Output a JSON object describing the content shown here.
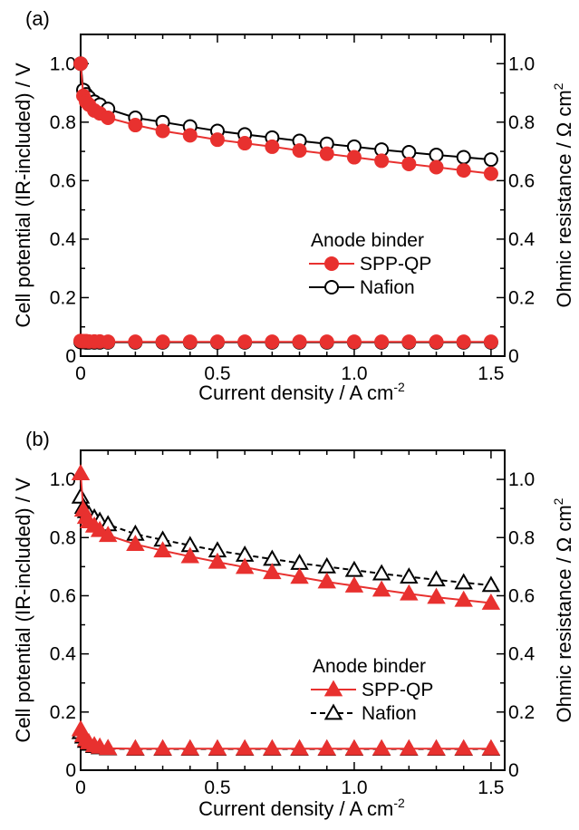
{
  "figure": {
    "panels": [
      "(a)",
      "(b)"
    ]
  },
  "chart_data": [
    {
      "type": "line",
      "panel": "(a)",
      "xlabel": "Current density / A cm",
      "xlabel_sup": "-2",
      "ylabel": "Cell potential (IR-included) / V",
      "y2label": "Ohmic resistance / Ω cm",
      "y2label_sup": "2",
      "xlim": [
        0,
        1.55
      ],
      "ylim": [
        0,
        1.1
      ],
      "y2lim": [
        0,
        1.1
      ],
      "xticks": [
        0,
        0.5,
        1.0,
        1.5
      ],
      "xtick_labels": [
        "0",
        "0.5",
        "1.0",
        "1.5"
      ],
      "yticks": [
        0,
        0.2,
        0.4,
        0.6,
        0.8,
        1.0
      ],
      "ytick_labels": [
        "0",
        "0.2",
        "0.4",
        "0.6",
        "0.8",
        "1.0"
      ],
      "y2tick_labels": [
        "0",
        "0.2",
        "0.4",
        "0.6",
        "0.8",
        "1.0"
      ],
      "legend": {
        "title": "Anode binder",
        "position": "center-right"
      },
      "x": [
        0,
        0.01,
        0.02,
        0.03,
        0.05,
        0.07,
        0.1,
        0.2,
        0.3,
        0.4,
        0.5,
        0.6,
        0.7,
        0.8,
        0.9,
        1.0,
        1.1,
        1.2,
        1.3,
        1.4,
        1.5
      ],
      "series": [
        {
          "name": "SPP-QP",
          "axis": "left",
          "marker": "filled-circle",
          "line": "solid",
          "color": "#e8312f",
          "values": [
            1.0,
            0.89,
            0.87,
            0.86,
            0.84,
            0.83,
            0.815,
            0.79,
            0.77,
            0.755,
            0.74,
            0.728,
            0.716,
            0.703,
            0.692,
            0.68,
            0.668,
            0.657,
            0.646,
            0.635,
            0.624
          ]
        },
        {
          "name": "Nafion",
          "axis": "left",
          "marker": "open-circle",
          "line": "solid",
          "color": "#000000",
          "values": [
            1.0,
            0.91,
            0.895,
            0.885,
            0.87,
            0.86,
            0.845,
            0.815,
            0.8,
            0.785,
            0.77,
            0.758,
            0.747,
            0.736,
            0.726,
            0.716,
            0.706,
            0.697,
            0.688,
            0.68,
            0.672
          ]
        },
        {
          "name": "SPP-QP resistance",
          "axis": "right",
          "marker": "filled-circle",
          "line": "solid",
          "color": "#e8312f",
          "legend": false,
          "values": [
            0.052,
            0.051,
            0.051,
            0.05,
            0.05,
            0.05,
            0.049,
            0.049,
            0.049,
            0.049,
            0.049,
            0.049,
            0.049,
            0.049,
            0.049,
            0.049,
            0.049,
            0.049,
            0.049,
            0.049,
            0.049
          ]
        },
        {
          "name": "Nafion resistance",
          "axis": "right",
          "marker": "open-circle",
          "line": "solid",
          "color": "#000000",
          "legend": false,
          "values": [
            0.048,
            0.048,
            0.047,
            0.047,
            0.047,
            0.047,
            0.047,
            0.047,
            0.047,
            0.047,
            0.047,
            0.047,
            0.047,
            0.047,
            0.047,
            0.047,
            0.047,
            0.047,
            0.047,
            0.047,
            0.047
          ]
        }
      ]
    },
    {
      "type": "line",
      "panel": "(b)",
      "xlabel": "Current density / A cm",
      "xlabel_sup": "-2",
      "ylabel": "Cell potential (IR-included) / V",
      "y2label": "Ohmic resistance / Ω cm",
      "y2label_sup": "2",
      "xlim": [
        0,
        1.55
      ],
      "ylim": [
        0,
        1.1
      ],
      "y2lim": [
        0,
        1.1
      ],
      "xticks": [
        0,
        0.5,
        1.0,
        1.5
      ],
      "xtick_labels": [
        "0",
        "0.5",
        "1.0",
        "1.5"
      ],
      "yticks": [
        0,
        0.2,
        0.4,
        0.6,
        0.8,
        1.0
      ],
      "ytick_labels": [
        "0",
        "0.2",
        "0.4",
        "0.6",
        "0.8",
        "1.0"
      ],
      "y2tick_labels": [
        "0",
        "0.2",
        "0.4",
        "0.6",
        "0.8",
        "1.0"
      ],
      "legend": {
        "title": "Anode binder",
        "position": "bottom-right"
      },
      "x": [
        0,
        0.01,
        0.02,
        0.03,
        0.05,
        0.07,
        0.1,
        0.2,
        0.3,
        0.4,
        0.5,
        0.6,
        0.7,
        0.8,
        0.9,
        1.0,
        1.1,
        1.2,
        1.3,
        1.4,
        1.5
      ],
      "series": [
        {
          "name": "SPP-QP",
          "axis": "left",
          "marker": "filled-triangle",
          "line": "solid",
          "color": "#e8312f",
          "values": [
            1.02,
            0.895,
            0.87,
            0.855,
            0.84,
            0.825,
            0.808,
            0.777,
            0.755,
            0.735,
            0.716,
            0.698,
            0.68,
            0.664,
            0.648,
            0.634,
            0.62,
            0.607,
            0.595,
            0.585,
            0.575
          ]
        },
        {
          "name": "Nafion",
          "axis": "left",
          "marker": "open-triangle",
          "line": "dashed",
          "color": "#000000",
          "values": [
            0.94,
            0.905,
            0.89,
            0.88,
            0.868,
            0.857,
            0.845,
            0.812,
            0.792,
            0.773,
            0.755,
            0.74,
            0.726,
            0.712,
            0.7,
            0.688,
            0.676,
            0.665,
            0.655,
            0.645,
            0.636
          ]
        },
        {
          "name": "SPP-QP resistance",
          "axis": "right",
          "marker": "filled-triangle",
          "line": "solid",
          "color": "#e8312f",
          "legend": false,
          "values": [
            0.14,
            0.12,
            0.105,
            0.095,
            0.085,
            0.08,
            0.075,
            0.074,
            0.074,
            0.074,
            0.074,
            0.074,
            0.074,
            0.074,
            0.074,
            0.074,
            0.074,
            0.074,
            0.074,
            0.074,
            0.074
          ]
        },
        {
          "name": "Nafion resistance",
          "axis": "right",
          "marker": "open-triangle",
          "line": "dashed",
          "color": "#000000",
          "legend": false,
          "values": [
            0.13,
            0.115,
            0.1,
            0.09,
            0.082,
            0.078,
            0.074,
            0.073,
            0.073,
            0.073,
            0.073,
            0.073,
            0.073,
            0.073,
            0.073,
            0.073,
            0.073,
            0.073,
            0.073,
            0.073,
            0.073
          ]
        }
      ]
    }
  ]
}
